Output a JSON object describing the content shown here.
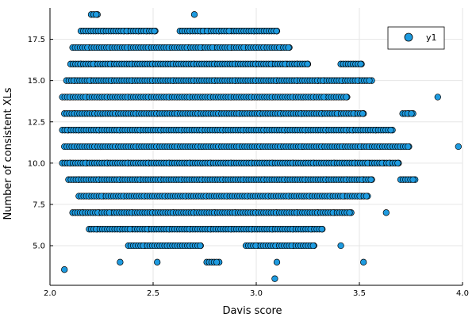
{
  "chart_data": {
    "type": "scatter",
    "xlabel": "Davis score",
    "ylabel": "Number of consistent XLs",
    "xlim": [
      2.0,
      4.0
    ],
    "ylim": [
      2.6,
      19.4
    ],
    "xticks": [
      2.0,
      2.5,
      3.0,
      3.5,
      4.0
    ],
    "xtick_labels": [
      "2.0",
      "2.5",
      "3.0",
      "3.5",
      "4.0"
    ],
    "yticks": [
      5.0,
      7.5,
      10.0,
      12.5,
      15.0,
      17.5
    ],
    "ytick_labels": [
      "5.0",
      "7.5",
      "10.0",
      "12.5",
      "15.0",
      "17.5"
    ],
    "grid": true,
    "legend_position": "top-right",
    "colors": {
      "marker": "#1e9be0",
      "marker_edge": "#000000",
      "grid": "#e6e6e6",
      "axis": "#000000"
    },
    "series": [
      {
        "name": "y1",
        "points": [
          [
            2.2,
            19
          ],
          [
            2.23,
            19
          ],
          [
            2.7,
            19
          ],
          [
            2.15,
            18
          ],
          [
            2.26,
            18
          ],
          [
            2.36,
            18
          ],
          [
            2.38,
            18
          ],
          [
            2.43,
            18
          ],
          [
            2.47,
            18
          ],
          [
            2.51,
            18
          ],
          [
            2.63,
            18
          ],
          [
            2.68,
            18
          ],
          [
            2.73,
            18
          ],
          [
            2.75,
            18
          ],
          [
            2.77,
            18
          ],
          [
            2.82,
            18
          ],
          [
            2.88,
            18
          ],
          [
            2.99,
            18
          ],
          [
            3.1,
            18
          ],
          [
            2.07,
            3.55
          ],
          [
            2.11,
            17
          ],
          [
            2.19,
            17
          ],
          [
            2.29,
            17
          ],
          [
            2.38,
            17
          ],
          [
            2.48,
            17
          ],
          [
            2.58,
            17
          ],
          [
            2.67,
            17
          ],
          [
            2.74,
            17
          ],
          [
            2.8,
            17
          ],
          [
            2.88,
            17
          ],
          [
            2.95,
            17
          ],
          [
            3.0,
            17
          ],
          [
            3.04,
            17
          ],
          [
            3.12,
            17
          ],
          [
            3.16,
            17
          ],
          [
            2.1,
            16
          ],
          [
            2.15,
            16
          ],
          [
            2.22,
            16
          ],
          [
            2.3,
            16
          ],
          [
            2.4,
            16
          ],
          [
            2.5,
            16
          ],
          [
            2.6,
            16
          ],
          [
            2.7,
            16
          ],
          [
            2.8,
            16
          ],
          [
            2.9,
            16
          ],
          [
            3.0,
            16
          ],
          [
            3.08,
            16
          ],
          [
            3.15,
            16
          ],
          [
            3.2,
            16
          ],
          [
            3.25,
            16
          ],
          [
            3.41,
            16
          ],
          [
            3.51,
            16
          ],
          [
            2.08,
            15
          ],
          [
            2.12,
            15
          ],
          [
            2.2,
            15
          ],
          [
            2.3,
            15
          ],
          [
            2.4,
            15
          ],
          [
            2.5,
            15
          ],
          [
            2.6,
            15
          ],
          [
            2.7,
            15
          ],
          [
            2.8,
            15
          ],
          [
            2.9,
            15
          ],
          [
            3.0,
            15
          ],
          [
            3.1,
            15
          ],
          [
            3.2,
            15
          ],
          [
            3.3,
            15
          ],
          [
            3.33,
            15
          ],
          [
            3.42,
            15
          ],
          [
            3.5,
            15
          ],
          [
            3.56,
            15
          ],
          [
            2.06,
            14
          ],
          [
            2.1,
            14
          ],
          [
            2.18,
            14
          ],
          [
            2.28,
            14
          ],
          [
            2.38,
            14
          ],
          [
            2.48,
            14
          ],
          [
            2.58,
            14
          ],
          [
            2.68,
            14
          ],
          [
            2.78,
            14
          ],
          [
            2.88,
            14
          ],
          [
            2.98,
            14
          ],
          [
            3.08,
            14
          ],
          [
            3.18,
            14
          ],
          [
            3.28,
            14
          ],
          [
            3.34,
            14
          ],
          [
            3.44,
            14
          ],
          [
            3.88,
            14
          ],
          [
            2.07,
            13
          ],
          [
            2.12,
            13
          ],
          [
            2.22,
            13
          ],
          [
            2.32,
            13
          ],
          [
            2.42,
            13
          ],
          [
            2.52,
            13
          ],
          [
            2.62,
            13
          ],
          [
            2.72,
            13
          ],
          [
            2.82,
            13
          ],
          [
            2.92,
            13
          ],
          [
            3.02,
            13
          ],
          [
            3.12,
            13
          ],
          [
            3.22,
            13
          ],
          [
            3.32,
            13
          ],
          [
            3.4,
            13
          ],
          [
            3.48,
            13
          ],
          [
            3.52,
            13
          ],
          [
            3.71,
            13
          ],
          [
            3.74,
            13
          ],
          [
            3.76,
            13
          ],
          [
            2.06,
            12
          ],
          [
            2.09,
            12
          ],
          [
            2.14,
            12
          ],
          [
            2.24,
            12
          ],
          [
            2.34,
            12
          ],
          [
            2.44,
            12
          ],
          [
            2.54,
            12
          ],
          [
            2.64,
            12
          ],
          [
            2.74,
            12
          ],
          [
            2.84,
            12
          ],
          [
            2.94,
            12
          ],
          [
            3.04,
            12
          ],
          [
            3.14,
            12
          ],
          [
            3.24,
            12
          ],
          [
            3.34,
            12
          ],
          [
            3.44,
            12
          ],
          [
            3.47,
            12
          ],
          [
            3.58,
            12
          ],
          [
            3.66,
            12
          ],
          [
            2.07,
            11
          ],
          [
            2.12,
            11
          ],
          [
            2.22,
            11
          ],
          [
            2.32,
            11
          ],
          [
            2.42,
            11
          ],
          [
            2.52,
            11
          ],
          [
            2.62,
            11
          ],
          [
            2.72,
            11
          ],
          [
            2.82,
            11
          ],
          [
            2.92,
            11
          ],
          [
            3.02,
            11
          ],
          [
            3.12,
            11
          ],
          [
            3.22,
            11
          ],
          [
            3.32,
            11
          ],
          [
            3.42,
            11
          ],
          [
            3.51,
            11
          ],
          [
            3.55,
            11
          ],
          [
            3.6,
            11
          ],
          [
            3.65,
            11
          ],
          [
            3.7,
            11
          ],
          [
            3.74,
            11
          ],
          [
            3.98,
            11
          ],
          [
            2.06,
            10
          ],
          [
            2.1,
            10
          ],
          [
            2.18,
            10
          ],
          [
            2.28,
            10
          ],
          [
            2.38,
            10
          ],
          [
            2.48,
            10
          ],
          [
            2.58,
            10
          ],
          [
            2.68,
            10
          ],
          [
            2.78,
            10
          ],
          [
            2.88,
            10
          ],
          [
            2.98,
            10
          ],
          [
            3.08,
            10
          ],
          [
            3.18,
            10
          ],
          [
            3.28,
            10
          ],
          [
            3.38,
            10
          ],
          [
            3.48,
            10
          ],
          [
            3.55,
            10
          ],
          [
            3.62,
            10
          ],
          [
            3.65,
            10
          ],
          [
            3.69,
            10
          ],
          [
            2.09,
            9
          ],
          [
            2.14,
            9
          ],
          [
            2.24,
            9
          ],
          [
            2.34,
            9
          ],
          [
            2.44,
            9
          ],
          [
            2.54,
            9
          ],
          [
            2.64,
            9
          ],
          [
            2.74,
            9
          ],
          [
            2.84,
            9
          ],
          [
            2.94,
            9
          ],
          [
            3.04,
            9
          ],
          [
            3.14,
            9
          ],
          [
            3.24,
            9
          ],
          [
            3.34,
            9
          ],
          [
            3.44,
            9
          ],
          [
            3.52,
            9
          ],
          [
            3.56,
            9
          ],
          [
            3.7,
            9
          ],
          [
            3.77,
            9
          ],
          [
            2.14,
            8
          ],
          [
            2.19,
            8
          ],
          [
            2.26,
            8
          ],
          [
            2.36,
            8
          ],
          [
            2.46,
            8
          ],
          [
            2.56,
            8
          ],
          [
            2.66,
            8
          ],
          [
            2.76,
            8
          ],
          [
            2.86,
            8
          ],
          [
            2.96,
            8
          ],
          [
            3.06,
            8
          ],
          [
            3.16,
            8
          ],
          [
            3.26,
            8
          ],
          [
            3.36,
            8
          ],
          [
            3.43,
            8
          ],
          [
            3.51,
            8
          ],
          [
            3.54,
            8
          ],
          [
            2.11,
            7
          ],
          [
            2.16,
            7
          ],
          [
            2.24,
            7
          ],
          [
            2.3,
            7
          ],
          [
            2.4,
            7
          ],
          [
            2.5,
            7
          ],
          [
            2.6,
            7
          ],
          [
            2.7,
            7
          ],
          [
            2.8,
            7
          ],
          [
            2.9,
            7
          ],
          [
            3.0,
            7
          ],
          [
            3.1,
            7
          ],
          [
            3.2,
            7
          ],
          [
            3.3,
            7
          ],
          [
            3.38,
            7
          ],
          [
            3.46,
            7
          ],
          [
            3.63,
            7
          ],
          [
            2.19,
            6
          ],
          [
            2.2,
            6
          ],
          [
            2.23,
            6
          ],
          [
            2.34,
            6
          ],
          [
            2.4,
            6
          ],
          [
            2.48,
            6
          ],
          [
            2.58,
            6
          ],
          [
            2.68,
            6
          ],
          [
            2.78,
            6
          ],
          [
            2.88,
            6
          ],
          [
            2.98,
            6
          ],
          [
            3.08,
            6
          ],
          [
            3.18,
            6
          ],
          [
            3.27,
            6
          ],
          [
            3.32,
            6
          ],
          [
            2.38,
            5
          ],
          [
            2.46,
            5
          ],
          [
            2.57,
            5
          ],
          [
            2.68,
            5
          ],
          [
            2.73,
            5
          ],
          [
            2.95,
            5
          ],
          [
            3.01,
            5
          ],
          [
            3.1,
            5
          ],
          [
            3.18,
            5
          ],
          [
            3.28,
            5
          ],
          [
            3.41,
            5
          ],
          [
            2.34,
            4
          ],
          [
            2.52,
            4
          ],
          [
            2.76,
            4
          ],
          [
            2.82,
            4
          ],
          [
            3.1,
            4
          ],
          [
            3.52,
            4
          ],
          [
            3.09,
            3
          ]
        ]
      }
    ]
  }
}
